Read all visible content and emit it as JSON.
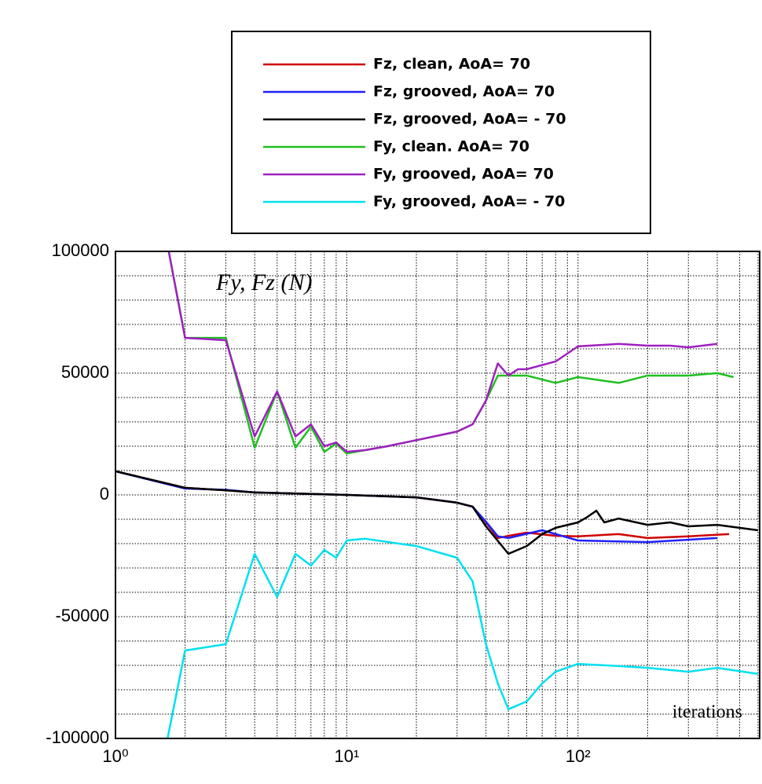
{
  "chart_data": {
    "type": "line",
    "legend": [],
    "legend_position": "top",
    "annotations": [
      "Fy, Fz (N)",
      "iterations"
    ],
    "xscale": "log",
    "xlim": [
      1,
      610
    ],
    "ylim": [
      -100000,
      100000
    ],
    "xticks": [
      {
        "value": 1,
        "label": "10⁰"
      },
      {
        "value": 10,
        "label": "10¹"
      },
      {
        "value": 100,
        "label": "10²"
      }
    ],
    "yticks": [
      -100000,
      -50000,
      0,
      50000,
      100000
    ],
    "xminorticks": [
      2,
      3,
      4,
      5,
      6,
      7,
      8,
      9,
      20,
      30,
      40,
      50,
      60,
      70,
      80,
      90,
      200,
      300,
      400,
      500,
      600
    ],
    "yminorticks": [
      -90000,
      -80000,
      -70000,
      -60000,
      -40000,
      -30000,
      -20000,
      -10000,
      10000,
      20000,
      30000,
      40000,
      60000,
      70000,
      80000,
      90000
    ],
    "grid": true,
    "series": [
      {
        "name": "Fz, clean, AoA= 70",
        "color": "#d00000",
        "x": [
          1,
          2,
          3,
          4,
          10,
          20,
          30,
          35,
          40,
          45,
          50,
          60,
          80,
          100,
          150,
          200,
          300,
          450
        ],
        "values": [
          9700,
          2900,
          1900,
          1000,
          0,
          -1000,
          -3200,
          -4800,
          -11300,
          -17700,
          -16800,
          -15500,
          -16800,
          -17000,
          -16100,
          -17700,
          -17000,
          -16100
        ]
      },
      {
        "name": "Fz, grooved, AoA= 70",
        "color": "#2020ff",
        "x": [
          1,
          2,
          3,
          4,
          10,
          20,
          30,
          35,
          40,
          45,
          50,
          70,
          100,
          200,
          400
        ],
        "values": [
          9700,
          2600,
          2100,
          1000,
          0,
          -1000,
          -3200,
          -4800,
          -11000,
          -17000,
          -17700,
          -14500,
          -18700,
          -19400,
          -17700
        ]
      },
      {
        "name": "Fz, grooved, AoA= - 70",
        "color": "#000000",
        "x": [
          1,
          2,
          3,
          4,
          10,
          20,
          30,
          35,
          40,
          50,
          60,
          70,
          80,
          100,
          110,
          120,
          130,
          150,
          200,
          250,
          300,
          400,
          600
        ],
        "values": [
          9700,
          2900,
          1900,
          1000,
          0,
          -1000,
          -3200,
          -4800,
          -12900,
          -24200,
          -21000,
          -16100,
          -13500,
          -11300,
          -9000,
          -6500,
          -11300,
          -9700,
          -12300,
          -11300,
          -12900,
          -12300,
          -14500
        ]
      },
      {
        "name": "Fy, clean. AoA= 70",
        "color": "#20c020",
        "x": [
          1.7,
          2,
          3,
          4,
          5,
          6,
          7,
          8,
          9,
          10,
          12,
          15,
          20,
          30,
          35,
          40,
          45,
          50,
          60,
          80,
          100,
          150,
          200,
          300,
          400,
          470
        ],
        "values": [
          100000,
          64500,
          64500,
          19400,
          42500,
          19400,
          28000,
          17700,
          21000,
          17000,
          18400,
          20000,
          22500,
          26000,
          29000,
          38700,
          49000,
          49000,
          49000,
          46000,
          48400,
          46000,
          49000,
          49000,
          50000,
          48400
        ]
      },
      {
        "name": "Fy, grooved, AoA= 70",
        "color": "#a020c0",
        "x": [
          1.7,
          2,
          3,
          4,
          5,
          6,
          7,
          8,
          9,
          10,
          12,
          15,
          20,
          30,
          35,
          40,
          45,
          50,
          55,
          60,
          80,
          100,
          150,
          200,
          250,
          300,
          400
        ],
        "values": [
          100000,
          64500,
          63500,
          24000,
          42500,
          24000,
          29000,
          20000,
          21500,
          17700,
          18400,
          20000,
          22500,
          26000,
          29000,
          38700,
          54000,
          49000,
          51600,
          51600,
          54800,
          61000,
          62000,
          61300,
          61300,
          60600,
          62000
        ]
      },
      {
        "name": "Fy, grooved, AoA= - 70",
        "color": "#00e0f0",
        "x": [
          1.68,
          2,
          3,
          4,
          5,
          6,
          7,
          8,
          9,
          10,
          12,
          20,
          30,
          35,
          40,
          45,
          50,
          60,
          70,
          80,
          100,
          150,
          200,
          300,
          400,
          600
        ],
        "values": [
          -100000,
          -63900,
          -61300,
          -24200,
          -41900,
          -24200,
          -29000,
          -22600,
          -25800,
          -18700,
          -18000,
          -21000,
          -25800,
          -35500,
          -61300,
          -77400,
          -88000,
          -84800,
          -77400,
          -72600,
          -69400,
          -70300,
          -71000,
          -72600,
          -71000,
          -73500
        ]
      }
    ]
  }
}
